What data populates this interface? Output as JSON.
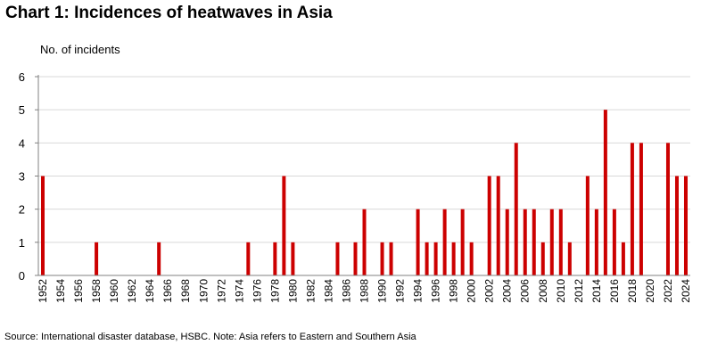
{
  "chart_data": {
    "type": "bar",
    "title": "Chart 1: Incidences of heatwaves in Asia",
    "ylabel": "No. of incidents",
    "xlabel": "",
    "ylim": [
      0,
      6
    ],
    "yticks": [
      0,
      1,
      2,
      3,
      4,
      5,
      6
    ],
    "grid": "horizontal",
    "bar_color": "#cc0000",
    "categories": [
      1952,
      1953,
      1954,
      1955,
      1956,
      1957,
      1958,
      1959,
      1960,
      1961,
      1962,
      1963,
      1964,
      1965,
      1966,
      1967,
      1968,
      1969,
      1970,
      1971,
      1972,
      1973,
      1974,
      1975,
      1976,
      1977,
      1978,
      1979,
      1980,
      1981,
      1982,
      1983,
      1984,
      1985,
      1986,
      1987,
      1988,
      1989,
      1990,
      1991,
      1992,
      1993,
      1994,
      1995,
      1996,
      1997,
      1998,
      1999,
      2000,
      2001,
      2002,
      2003,
      2004,
      2005,
      2006,
      2007,
      2008,
      2009,
      2010,
      2011,
      2012,
      2013,
      2014,
      2015,
      2016,
      2017,
      2018,
      2019,
      2020,
      2021,
      2022,
      2023,
      2024
    ],
    "values": [
      3,
      0,
      0,
      0,
      0,
      0,
      1,
      0,
      0,
      0,
      0,
      0,
      0,
      1,
      0,
      0,
      0,
      0,
      0,
      0,
      0,
      0,
      0,
      1,
      0,
      0,
      1,
      3,
      1,
      0,
      0,
      0,
      0,
      1,
      0,
      1,
      2,
      0,
      1,
      1,
      0,
      0,
      2,
      1,
      1,
      2,
      1,
      2,
      1,
      0,
      3,
      3,
      2,
      4,
      2,
      2,
      1,
      2,
      2,
      1,
      0,
      3,
      2,
      5,
      2,
      1,
      4,
      4,
      0,
      0,
      4,
      3,
      3
    ],
    "xtick_labels": [
      "1952",
      "1954",
      "1956",
      "1958",
      "1960",
      "1962",
      "1964",
      "1966",
      "1968",
      "1970",
      "1972",
      "1974",
      "1976",
      "1978",
      "1980",
      "1982",
      "1984",
      "1986",
      "1988",
      "1990",
      "1992",
      "1994",
      "1996",
      "1998",
      "2000",
      "2002",
      "2004",
      "2006",
      "2008",
      "2010",
      "2012",
      "2014",
      "2016",
      "2018",
      "2020",
      "2022",
      "2024"
    ]
  },
  "source": "Source: International disaster database, HSBC. Note: Asia refers to Eastern and Southern Asia"
}
